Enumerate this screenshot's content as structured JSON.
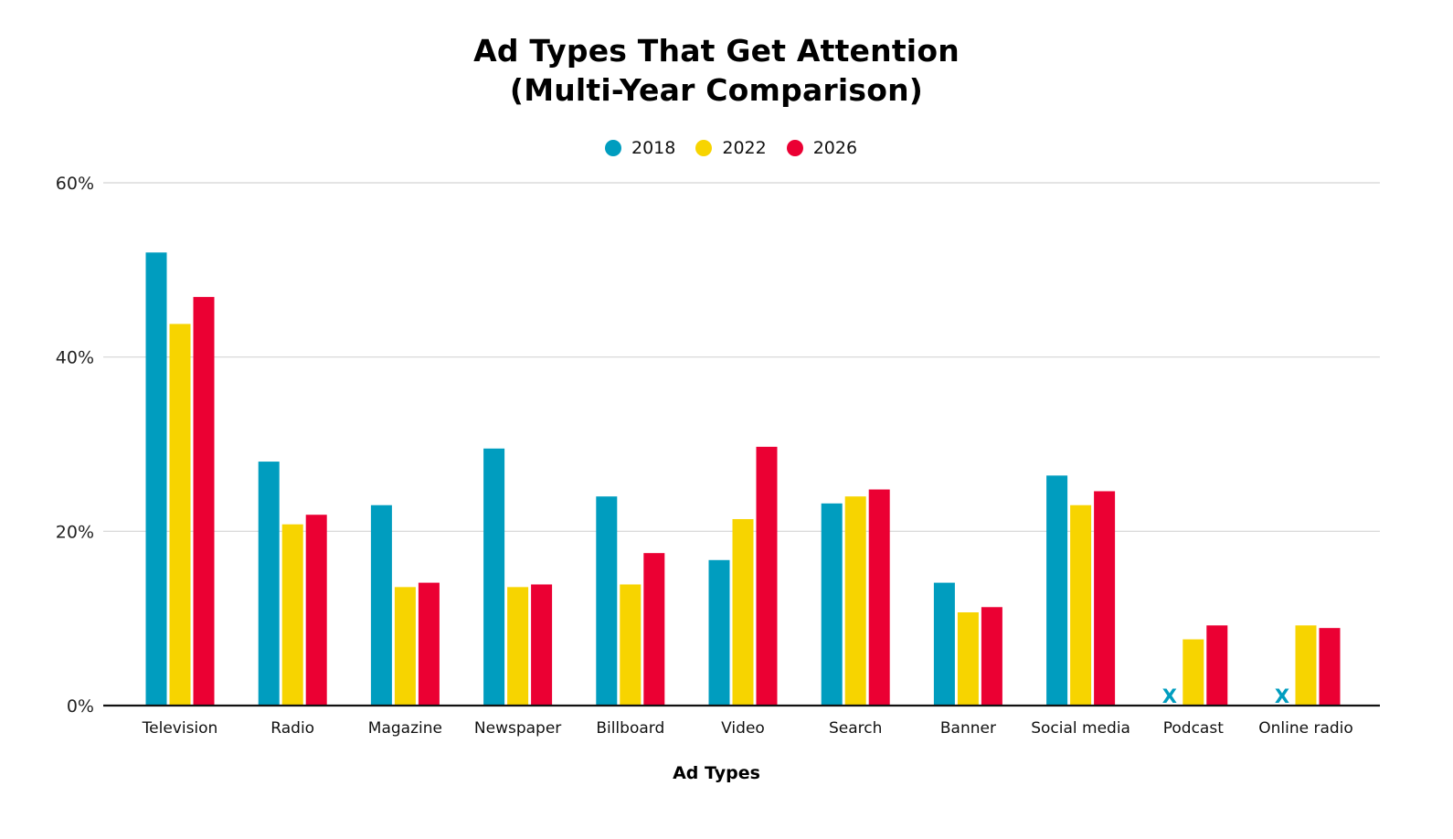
{
  "chart_data": {
    "type": "bar",
    "title": [
      "Ad Types That Get Attention",
      "(Multi-Year Comparison)"
    ],
    "xlabel": "Ad Types",
    "ylabel": "",
    "ylim": [
      0,
      60
    ],
    "yticks": [
      0,
      20,
      40,
      60
    ],
    "ytick_labels": [
      "0%",
      "20%",
      "40%",
      "60%"
    ],
    "grid": true,
    "legend_position": "top-center",
    "categories": [
      "Television",
      "Radio",
      "Magazine",
      "Newspaper",
      "Billboard",
      "Video",
      "Search",
      "Banner",
      "Social media",
      "Podcast",
      "Online radio"
    ],
    "series": [
      {
        "name": "2018",
        "color": "#009DBF",
        "values": [
          52,
          28,
          23,
          29.5,
          24,
          16.7,
          23.2,
          14.1,
          26.4,
          null,
          null
        ]
      },
      {
        "name": "2022",
        "color": "#F7D400",
        "values": [
          43.8,
          20.8,
          13.6,
          13.6,
          13.9,
          21.4,
          24,
          10.7,
          23,
          7.6,
          9.2
        ]
      },
      {
        "name": "2026",
        "color": "#EB0033",
        "values": [
          46.9,
          21.9,
          14.1,
          13.9,
          17.5,
          29.7,
          24.8,
          11.3,
          24.6,
          9.2,
          8.9
        ]
      }
    ],
    "missing_marker": "X",
    "missing_note_color": "#009DBF"
  }
}
